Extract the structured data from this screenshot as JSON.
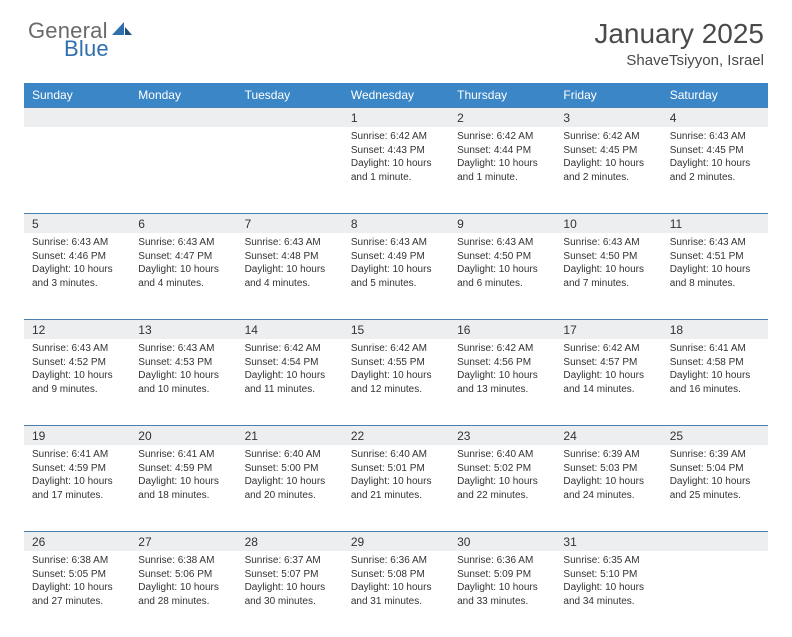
{
  "logo": {
    "word1": "General",
    "word2": "Blue"
  },
  "colors": {
    "header_bg": "#3b86c6",
    "daynum_bg": "#eceef0",
    "row_border": "#4a7fb0",
    "logo_gray": "#6a6a6a",
    "logo_blue": "#2f6fae",
    "text": "#333333",
    "title_gray": "#4a4a4a"
  },
  "title": "January 2025",
  "location": "ShaveTsiyyon, Israel",
  "weekdays": [
    "Sunday",
    "Monday",
    "Tuesday",
    "Wednesday",
    "Thursday",
    "Friday",
    "Saturday"
  ],
  "weeks": [
    [
      null,
      null,
      null,
      {
        "n": "1",
        "sr": "6:42 AM",
        "ss": "4:43 PM",
        "dl": "10 hours and 1 minute."
      },
      {
        "n": "2",
        "sr": "6:42 AM",
        "ss": "4:44 PM",
        "dl": "10 hours and 1 minute."
      },
      {
        "n": "3",
        "sr": "6:42 AM",
        "ss": "4:45 PM",
        "dl": "10 hours and 2 minutes."
      },
      {
        "n": "4",
        "sr": "6:43 AM",
        "ss": "4:45 PM",
        "dl": "10 hours and 2 minutes."
      }
    ],
    [
      {
        "n": "5",
        "sr": "6:43 AM",
        "ss": "4:46 PM",
        "dl": "10 hours and 3 minutes."
      },
      {
        "n": "6",
        "sr": "6:43 AM",
        "ss": "4:47 PM",
        "dl": "10 hours and 4 minutes."
      },
      {
        "n": "7",
        "sr": "6:43 AM",
        "ss": "4:48 PM",
        "dl": "10 hours and 4 minutes."
      },
      {
        "n": "8",
        "sr": "6:43 AM",
        "ss": "4:49 PM",
        "dl": "10 hours and 5 minutes."
      },
      {
        "n": "9",
        "sr": "6:43 AM",
        "ss": "4:50 PM",
        "dl": "10 hours and 6 minutes."
      },
      {
        "n": "10",
        "sr": "6:43 AM",
        "ss": "4:50 PM",
        "dl": "10 hours and 7 minutes."
      },
      {
        "n": "11",
        "sr": "6:43 AM",
        "ss": "4:51 PM",
        "dl": "10 hours and 8 minutes."
      }
    ],
    [
      {
        "n": "12",
        "sr": "6:43 AM",
        "ss": "4:52 PM",
        "dl": "10 hours and 9 minutes."
      },
      {
        "n": "13",
        "sr": "6:43 AM",
        "ss": "4:53 PM",
        "dl": "10 hours and 10 minutes."
      },
      {
        "n": "14",
        "sr": "6:42 AM",
        "ss": "4:54 PM",
        "dl": "10 hours and 11 minutes."
      },
      {
        "n": "15",
        "sr": "6:42 AM",
        "ss": "4:55 PM",
        "dl": "10 hours and 12 minutes."
      },
      {
        "n": "16",
        "sr": "6:42 AM",
        "ss": "4:56 PM",
        "dl": "10 hours and 13 minutes."
      },
      {
        "n": "17",
        "sr": "6:42 AM",
        "ss": "4:57 PM",
        "dl": "10 hours and 14 minutes."
      },
      {
        "n": "18",
        "sr": "6:41 AM",
        "ss": "4:58 PM",
        "dl": "10 hours and 16 minutes."
      }
    ],
    [
      {
        "n": "19",
        "sr": "6:41 AM",
        "ss": "4:59 PM",
        "dl": "10 hours and 17 minutes."
      },
      {
        "n": "20",
        "sr": "6:41 AM",
        "ss": "4:59 PM",
        "dl": "10 hours and 18 minutes."
      },
      {
        "n": "21",
        "sr": "6:40 AM",
        "ss": "5:00 PM",
        "dl": "10 hours and 20 minutes."
      },
      {
        "n": "22",
        "sr": "6:40 AM",
        "ss": "5:01 PM",
        "dl": "10 hours and 21 minutes."
      },
      {
        "n": "23",
        "sr": "6:40 AM",
        "ss": "5:02 PM",
        "dl": "10 hours and 22 minutes."
      },
      {
        "n": "24",
        "sr": "6:39 AM",
        "ss": "5:03 PM",
        "dl": "10 hours and 24 minutes."
      },
      {
        "n": "25",
        "sr": "6:39 AM",
        "ss": "5:04 PM",
        "dl": "10 hours and 25 minutes."
      }
    ],
    [
      {
        "n": "26",
        "sr": "6:38 AM",
        "ss": "5:05 PM",
        "dl": "10 hours and 27 minutes."
      },
      {
        "n": "27",
        "sr": "6:38 AM",
        "ss": "5:06 PM",
        "dl": "10 hours and 28 minutes."
      },
      {
        "n": "28",
        "sr": "6:37 AM",
        "ss": "5:07 PM",
        "dl": "10 hours and 30 minutes."
      },
      {
        "n": "29",
        "sr": "6:36 AM",
        "ss": "5:08 PM",
        "dl": "10 hours and 31 minutes."
      },
      {
        "n": "30",
        "sr": "6:36 AM",
        "ss": "5:09 PM",
        "dl": "10 hours and 33 minutes."
      },
      {
        "n": "31",
        "sr": "6:35 AM",
        "ss": "5:10 PM",
        "dl": "10 hours and 34 minutes."
      },
      null
    ]
  ],
  "labels": {
    "sunrise": "Sunrise:",
    "sunset": "Sunset:",
    "daylight": "Daylight:"
  }
}
